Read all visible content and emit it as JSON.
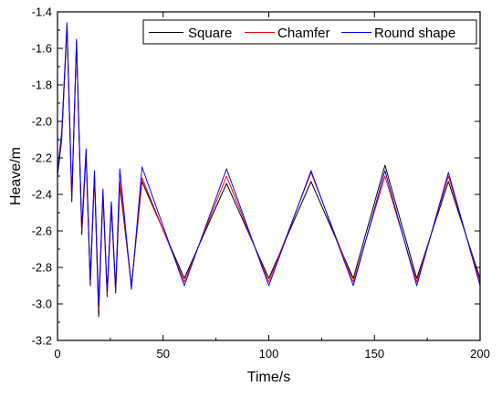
{
  "chart_data": {
    "type": "line",
    "title": "",
    "xlabel": "Time/s",
    "ylabel": "Heave/m",
    "xlim": [
      0,
      200
    ],
    "ylim": [
      -3.2,
      -1.4
    ],
    "x_ticks": [
      {
        "value": 0,
        "label": "0"
      },
      {
        "value": 50,
        "label": "50"
      },
      {
        "value": 100,
        "label": "100"
      },
      {
        "value": 150,
        "label": "150"
      },
      {
        "value": 200,
        "label": "200"
      }
    ],
    "y_ticks": [
      {
        "value": -1.4,
        "label": "-1.4"
      },
      {
        "value": -1.6,
        "label": "-1.6"
      },
      {
        "value": -1.8,
        "label": "-1.8"
      },
      {
        "value": -2.0,
        "label": "-2.0"
      },
      {
        "value": -2.2,
        "label": "-2.2"
      },
      {
        "value": -2.4,
        "label": "-2.4"
      },
      {
        "value": -2.6,
        "label": "-2.6"
      },
      {
        "value": -2.8,
        "label": "-2.8"
      },
      {
        "value": -3.0,
        "label": "-3.0"
      },
      {
        "value": -3.2,
        "label": "-3.2"
      }
    ],
    "grid": false,
    "legend_position": "top-right",
    "series": [
      {
        "name": "Square",
        "color": "#000000",
        "x": [
          0,
          2,
          4.5,
          6.8,
          9,
          11.5,
          13.5,
          15.5,
          17.5,
          19.5,
          21.5,
          23.5,
          25.5,
          27.5,
          29.5,
          35,
          40,
          60,
          80,
          100,
          120,
          140,
          155,
          170,
          185,
          200
        ],
        "y": [
          -2.3,
          -2.1,
          -1.48,
          -2.44,
          -1.57,
          -2.62,
          -2.18,
          -2.9,
          -2.3,
          -3.07,
          -2.4,
          -2.96,
          -2.47,
          -2.94,
          -2.35,
          -2.9,
          -2.33,
          -2.86,
          -2.34,
          -2.86,
          -2.33,
          -2.86,
          -2.24,
          -2.86,
          -2.33,
          -2.86
        ]
      },
      {
        "name": "Chamfer",
        "color": "#ff0000",
        "x": [
          0,
          2,
          4.5,
          6.8,
          9,
          11.5,
          13.5,
          15.5,
          17.5,
          19.5,
          21.5,
          23.5,
          25.5,
          27.5,
          29.5,
          35,
          40,
          60,
          80,
          100,
          120,
          140,
          155,
          170,
          185,
          200
        ],
        "y": [
          -2.28,
          -2.08,
          -1.47,
          -2.42,
          -1.56,
          -2.6,
          -2.17,
          -2.88,
          -2.29,
          -3.03,
          -2.39,
          -2.95,
          -2.45,
          -2.93,
          -2.33,
          -2.9,
          -2.31,
          -2.88,
          -2.3,
          -2.88,
          -2.28,
          -2.88,
          -2.3,
          -2.88,
          -2.3,
          -2.88
        ]
      },
      {
        "name": "Round shape",
        "color": "#0000ff",
        "x": [
          0,
          2,
          4.5,
          6.8,
          9,
          11.5,
          13.5,
          15.5,
          17.5,
          19.5,
          21.5,
          23.5,
          25.5,
          27.5,
          29.5,
          35,
          40,
          60,
          80,
          100,
          120,
          140,
          155,
          170,
          185,
          200
        ],
        "y": [
          -2.27,
          -2.06,
          -1.46,
          -2.41,
          -1.55,
          -2.58,
          -2.15,
          -2.87,
          -2.27,
          -3.01,
          -2.37,
          -2.93,
          -2.44,
          -2.92,
          -2.26,
          -2.92,
          -2.25,
          -2.9,
          -2.26,
          -2.9,
          -2.27,
          -2.9,
          -2.27,
          -2.9,
          -2.28,
          -2.9
        ]
      }
    ]
  }
}
